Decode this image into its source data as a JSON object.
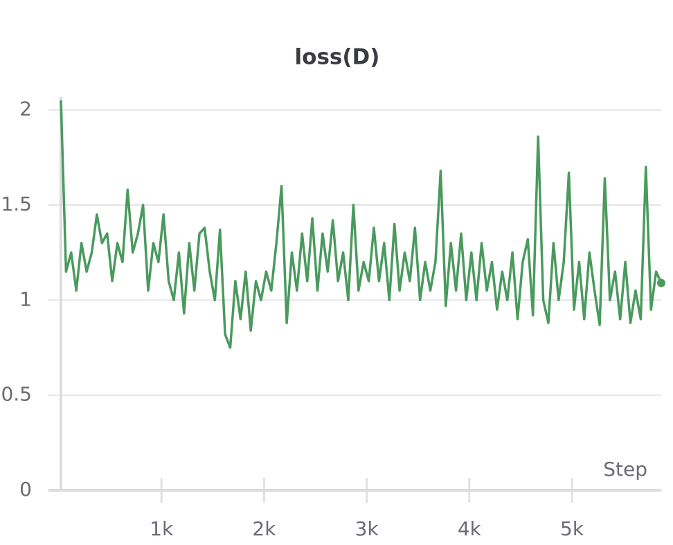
{
  "chart_data": {
    "type": "line",
    "title": "loss(D)",
    "x_label": "Step",
    "x": [
      20,
      70,
      120,
      170,
      220,
      270,
      320,
      370,
      420,
      470,
      520,
      570,
      620,
      670,
      720,
      770,
      820,
      870,
      920,
      970,
      1020,
      1070,
      1120,
      1170,
      1220,
      1270,
      1320,
      1370,
      1420,
      1470,
      1520,
      1570,
      1620,
      1670,
      1720,
      1770,
      1820,
      1870,
      1920,
      1970,
      2020,
      2070,
      2120,
      2170,
      2220,
      2270,
      2320,
      2370,
      2420,
      2470,
      2520,
      2570,
      2620,
      2670,
      2720,
      2770,
      2820,
      2870,
      2920,
      2970,
      3020,
      3070,
      3120,
      3170,
      3220,
      3270,
      3320,
      3370,
      3420,
      3470,
      3520,
      3570,
      3620,
      3670,
      3720,
      3770,
      3820,
      3870,
      3920,
      3970,
      4020,
      4070,
      4120,
      4170,
      4220,
      4270,
      4320,
      4370,
      4420,
      4470,
      4520,
      4570,
      4620,
      4670,
      4720,
      4770,
      4820,
      4870,
      4920,
      4970,
      5020,
      5070,
      5120,
      5170,
      5220,
      5270,
      5320,
      5370,
      5420,
      5470,
      5520,
      5570,
      5620,
      5670,
      5720,
      5770,
      5820,
      5870
    ],
    "series": [
      {
        "name": "loss(D)",
        "color": "#4a9a5e",
        "values": [
          2.05,
          1.15,
          1.25,
          1.05,
          1.3,
          1.15,
          1.25,
          1.45,
          1.3,
          1.35,
          1.1,
          1.3,
          1.2,
          1.58,
          1.25,
          1.35,
          1.5,
          1.05,
          1.3,
          1.2,
          1.45,
          1.1,
          1.0,
          1.25,
          0.93,
          1.3,
          1.05,
          1.35,
          1.38,
          1.15,
          1.0,
          1.37,
          0.82,
          0.75,
          1.1,
          0.9,
          1.15,
          0.84,
          1.1,
          1.0,
          1.15,
          1.05,
          1.3,
          1.6,
          0.88,
          1.25,
          1.05,
          1.35,
          1.1,
          1.43,
          1.05,
          1.35,
          1.15,
          1.42,
          1.1,
          1.25,
          1.0,
          1.5,
          1.05,
          1.2,
          1.1,
          1.38,
          1.1,
          1.3,
          1.0,
          1.4,
          1.05,
          1.25,
          1.1,
          1.38,
          1.0,
          1.2,
          1.05,
          1.2,
          1.68,
          0.97,
          1.3,
          1.05,
          1.35,
          1.0,
          1.25,
          1.0,
          1.3,
          1.05,
          1.2,
          0.95,
          1.15,
          1.0,
          1.25,
          0.9,
          1.2,
          1.32,
          0.92,
          1.86,
          1.0,
          0.88,
          1.3,
          1.0,
          1.2,
          1.67,
          0.95,
          1.2,
          0.9,
          1.25,
          1.05,
          0.87,
          1.64,
          1.0,
          1.15,
          0.9,
          1.2,
          0.88,
          1.05,
          0.9,
          1.7,
          0.95,
          1.15,
          1.09
        ]
      }
    ],
    "xlim": [
      20,
      5870
    ],
    "xticks": [
      {
        "value": 1000,
        "label": "1k"
      },
      {
        "value": 2000,
        "label": "2k"
      },
      {
        "value": 3000,
        "label": "3k"
      },
      {
        "value": 4000,
        "label": "4k"
      },
      {
        "value": 5000,
        "label": "5k"
      }
    ],
    "ylim": [
      0,
      2.05
    ],
    "yticks": [
      0,
      0.5,
      1,
      1.5,
      2
    ],
    "grid": true
  }
}
